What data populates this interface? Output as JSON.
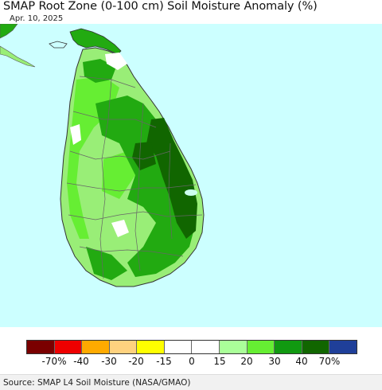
{
  "header": {
    "title": "SMAP Root Zone (0-100 cm) Soil Moisture Anomaly (%)",
    "date": "Apr. 10, 2025"
  },
  "map": {
    "region": "Sri Lanka",
    "colors": {
      "ocean": "#ccffff",
      "land_light_green": "#99ee77",
      "land_bright_green": "#66ee33",
      "land_green": "#22aa11",
      "land_dark_green": "#116600",
      "land_near_normal": "#ffffff",
      "boundary": "#666666"
    }
  },
  "legend": {
    "colors": [
      "#7a0000",
      "#ee0000",
      "#ffaa00",
      "#ffd27f",
      "#ffff00",
      "#ffffff",
      "#ffffff",
      "#aaff99",
      "#66ee33",
      "#119911",
      "#116600",
      "#1f3f99"
    ],
    "labels": [
      "-70%",
      "-40",
      "-30",
      "-20",
      "-15",
      "0",
      "15",
      "20",
      "30",
      "40",
      "70%"
    ]
  },
  "footer": {
    "source": "Source: SMAP L4 Soil Moisture (NASA/GMAO)"
  }
}
